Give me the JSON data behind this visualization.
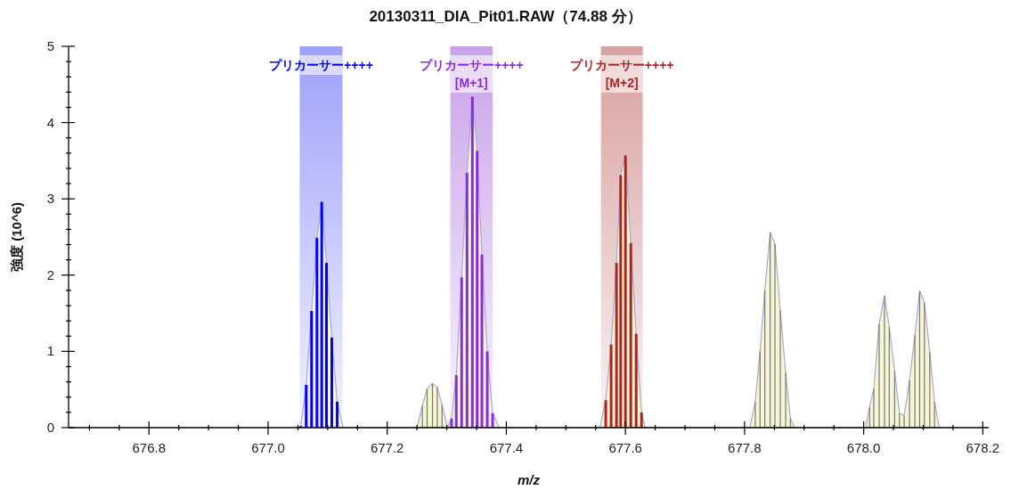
{
  "chart_data": {
    "type": "bar",
    "title": "20130311_DIA_Pit01.RAW（74.88 分）",
    "xlabel": "m/z",
    "ylabel": "強度 (10^6)",
    "xlim": [
      676.665,
      678.21
    ],
    "ylim": [
      0,
      5
    ],
    "xticks": [
      {
        "value": 676.7,
        "label": null
      },
      {
        "value": 676.75,
        "label": null
      },
      676.8,
      {
        "value": 676.85,
        "label": null
      },
      {
        "value": 676.9,
        "label": null
      },
      {
        "value": 676.95,
        "label": null
      },
      {
        "value": 677.0,
        "label": "677.0"
      },
      {
        "value": 677.05,
        "label": null
      },
      {
        "value": 677.1,
        "label": null
      },
      {
        "value": 677.15,
        "label": null
      },
      677.2,
      {
        "value": 677.25,
        "label": null
      },
      {
        "value": 677.3,
        "label": null
      },
      {
        "value": 677.35,
        "label": null
      },
      677.4,
      {
        "value": 677.45,
        "label": null
      },
      {
        "value": 677.5,
        "label": null
      },
      {
        "value": 677.55,
        "label": null
      },
      677.6,
      {
        "value": 677.65,
        "label": null
      },
      {
        "value": 677.7,
        "label": null
      },
      {
        "value": 677.75,
        "label": null
      },
      677.8,
      {
        "value": 677.85,
        "label": null
      },
      {
        "value": 677.9,
        "label": null
      },
      {
        "value": 677.95,
        "label": null
      },
      {
        "value": 678.0,
        "label": "678.0"
      },
      {
        "value": 678.05,
        "label": null
      },
      {
        "value": 678.1,
        "label": null
      },
      {
        "value": 678.15,
        "label": null
      },
      678.2
    ],
    "yticks": [
      0,
      {
        "value": 0.2,
        "label": null
      },
      {
        "value": 0.4,
        "label": null
      },
      {
        "value": 0.6,
        "label": null
      },
      {
        "value": 0.8,
        "label": null
      },
      1,
      {
        "value": 1.2,
        "label": null
      },
      {
        "value": 1.4,
        "label": null
      },
      {
        "value": 1.6,
        "label": null
      },
      {
        "value": 1.8,
        "label": null
      },
      2,
      {
        "value": 2.2,
        "label": null
      },
      {
        "value": 2.4,
        "label": null
      },
      {
        "value": 2.6,
        "label": null
      },
      {
        "value": 2.8,
        "label": null
      },
      3,
      {
        "value": 3.2,
        "label": null
      },
      {
        "value": 3.4,
        "label": null
      },
      {
        "value": 3.6,
        "label": null
      },
      {
        "value": 3.8,
        "label": null
      },
      4,
      {
        "value": 4.2,
        "label": null
      },
      {
        "value": 4.4,
        "label": null
      },
      {
        "value": 4.6,
        "label": null
      },
      {
        "value": 4.8,
        "label": null
      },
      5
    ],
    "bands": [
      {
        "axis": "x",
        "from": 677.053,
        "to": 677.125,
        "label": "プリカーサー++++",
        "color": "#9ea0fa"
      },
      {
        "axis": "x",
        "from": 677.306,
        "to": 677.377,
        "label": "プリカーサー++++\n[M+1]",
        "color": "#c9a3ea"
      },
      {
        "axis": "x",
        "from": 677.559,
        "to": 677.629,
        "label": "プリカーサー++++\n[M+2]",
        "color": "#d9a0a0"
      }
    ],
    "series": [
      {
        "type": "area",
        "color": "#a8a8d8",
        "x": [
          677.05,
          677.055,
          677.064,
          677.073,
          677.082,
          677.09,
          677.098,
          677.107,
          677.116,
          677.126,
          677.25,
          677.259,
          677.267,
          677.276,
          677.284,
          677.292,
          677.301,
          677.308,
          677.316,
          677.325,
          677.334,
          677.343,
          677.351,
          677.359,
          677.368,
          677.377,
          677.388,
          677.557,
          677.567,
          677.576,
          677.585,
          677.592,
          677.6,
          677.609,
          677.618,
          677.627,
          677.633,
          677.809,
          677.818,
          677.826,
          677.834,
          677.843,
          677.851,
          677.86,
          677.869,
          677.877,
          677.884,
          678.003,
          678.01,
          678.017,
          678.026,
          678.035,
          678.043,
          678.052,
          678.06,
          678.068,
          678.077,
          678.086,
          678.094,
          678.102,
          678.111,
          678.119,
          678.127
        ],
        "values": [
          0,
          0.02,
          0.56,
          1.53,
          2.49,
          2.96,
          2.16,
          1.18,
          0.34,
          0,
          0,
          0.29,
          0.51,
          0.58,
          0.53,
          0.3,
          0,
          0.12,
          0.69,
          1.97,
          3.34,
          4.34,
          3.63,
          2.27,
          1.0,
          0.19,
          0,
          0,
          0.36,
          1.09,
          2.16,
          3.31,
          3.57,
          2.42,
          1.23,
          0.2,
          0,
          0,
          0.34,
          1.0,
          1.8,
          2.56,
          2.41,
          1.54,
          0.72,
          0.12,
          0,
          0,
          0.27,
          0.51,
          1.36,
          1.73,
          1.32,
          0.74,
          0.19,
          0.16,
          0.62,
          1.21,
          1.79,
          1.64,
          0.99,
          0.34,
          0
        ]
      },
      {
        "color": "#777777",
        "x": [
          677.259,
          677.267,
          677.276,
          677.284,
          677.292,
          677.818,
          677.826,
          677.834,
          677.843,
          677.851,
          677.86,
          677.869,
          677.877,
          678.01,
          678.017,
          678.026,
          678.035,
          678.043,
          678.052,
          678.06,
          678.068,
          678.077,
          678.086,
          678.094,
          678.102,
          678.111,
          678.119
        ],
        "values": [
          0.29,
          0.51,
          0.58,
          0.53,
          0.3,
          0.34,
          1.0,
          1.8,
          2.56,
          2.41,
          1.54,
          0.72,
          0.12,
          0.27,
          0.51,
          1.36,
          1.73,
          1.32,
          0.74,
          0.19,
          0.16,
          0.62,
          1.21,
          1.79,
          1.64,
          0.99,
          0.34
        ]
      },
      {
        "color": "#0000ff",
        "x": [
          677.055,
          677.064,
          677.073,
          677.082,
          677.09,
          677.098,
          677.107,
          677.116
        ],
        "values": [
          0.02,
          0.56,
          1.53,
          2.49,
          2.96,
          2.16,
          1.18,
          0.34
        ]
      },
      {
        "color": "#8a2be2",
        "x": [
          677.308,
          677.316,
          677.325,
          677.334,
          677.343,
          677.351,
          677.359,
          677.368,
          677.377
        ],
        "values": [
          0.12,
          0.69,
          1.97,
          3.34,
          4.34,
          3.63,
          2.27,
          1.0,
          0.19
        ]
      },
      {
        "color": "#b22222",
        "x": [
          677.567,
          677.576,
          677.585,
          677.592,
          677.6,
          677.609,
          677.618,
          677.627
        ],
        "values": [
          0.36,
          1.09,
          2.16,
          3.31,
          3.57,
          2.42,
          1.23,
          0.2
        ]
      }
    ]
  }
}
